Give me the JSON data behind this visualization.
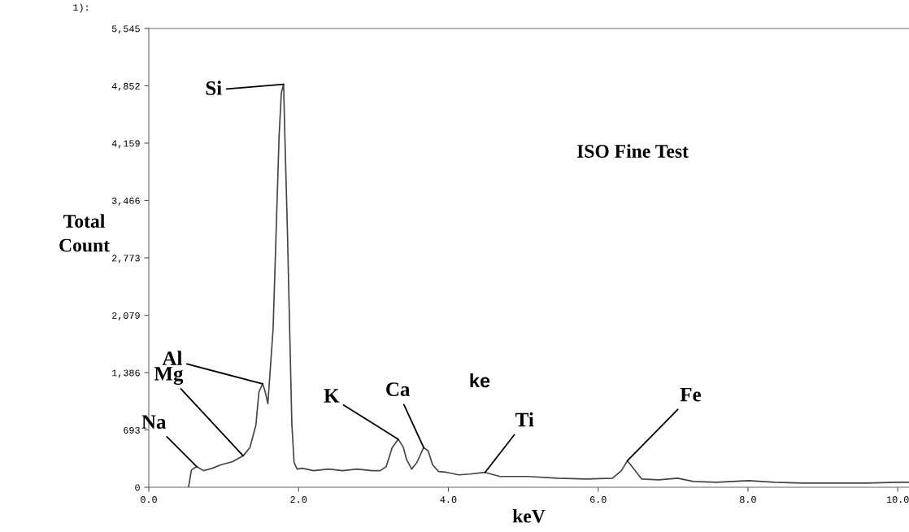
{
  "chart_data": {
    "type": "line",
    "xlabel": "keV",
    "ylabel": "Total Count",
    "xlim": [
      0,
      10.15
    ],
    "ylim": [
      0,
      5545
    ],
    "xticks": [
      {
        "value": 0,
        "label": "0.0"
      },
      {
        "value": 2,
        "label": "2.0"
      },
      {
        "value": 4,
        "label": "4.0"
      },
      {
        "value": 6,
        "label": "6.0"
      },
      {
        "value": 8,
        "label": "8.0"
      },
      {
        "value": 10,
        "label": "10.0"
      }
    ],
    "yticks": [
      0,
      {
        "value": 693,
        "label": "693"
      },
      {
        "value": 1386,
        "label": "1,386"
      },
      {
        "value": 2079,
        "label": "2,079"
      },
      {
        "value": 2773,
        "label": "2,773"
      },
      {
        "value": 3466,
        "label": "3,466"
      },
      {
        "value": 4159,
        "label": "4,159"
      },
      {
        "value": 4852,
        "label": "4,852"
      },
      {
        "value": 5545,
        "label": "5,545"
      }
    ],
    "grid": false,
    "legend": false,
    "marker": "none",
    "line_style": "solid",
    "series": [
      {
        "color": "#444444",
        "x": [
          0.53,
          0.57,
          0.64,
          0.73,
          0.85,
          0.96,
          1.12,
          1.26,
          1.35,
          1.43,
          1.47,
          1.52,
          1.55,
          1.59,
          1.66,
          1.7,
          1.74,
          1.77,
          1.8,
          1.815,
          1.85,
          1.88,
          1.91,
          1.94,
          1.98,
          2.05,
          2.2,
          2.4,
          2.59,
          2.78,
          2.98,
          3.09,
          3.17,
          3.25,
          3.33,
          3.36,
          3.4,
          3.44,
          3.51,
          3.58,
          3.67,
          3.73,
          3.79,
          3.87,
          3.98,
          4.14,
          4.29,
          4.49,
          4.69,
          5.07,
          5.46,
          5.85,
          6.19,
          6.31,
          6.39,
          6.46,
          6.58,
          6.81,
          7.06,
          7.27,
          7.58,
          8.01,
          8.36,
          8.74,
          9.13,
          9.59,
          9.98,
          10.15
        ],
        "values": [
          0,
          210,
          250,
          200,
          230,
          270,
          310,
          380,
          480,
          750,
          1150,
          1250,
          1170,
          1010,
          1920,
          3080,
          4250,
          4770,
          4870,
          4310,
          3130,
          1950,
          770,
          300,
          220,
          230,
          200,
          220,
          200,
          220,
          200,
          200,
          250,
          480,
          580,
          540,
          480,
          340,
          220,
          300,
          480,
          440,
          270,
          190,
          180,
          150,
          160,
          180,
          130,
          130,
          110,
          100,
          110,
          200,
          320,
          240,
          100,
          90,
          110,
          70,
          60,
          80,
          60,
          50,
          50,
          50,
          60,
          60
        ]
      }
    ],
    "annotations": [
      {
        "text": "Na",
        "x": 0.64,
        "y": 250
      },
      {
        "text": "Mg",
        "x": 1.26,
        "y": 380
      },
      {
        "text": "Al",
        "x": 1.52,
        "y": 1250
      },
      {
        "text": "Si",
        "x": 1.8,
        "y": 4870
      },
      {
        "text": "K",
        "x": 3.33,
        "y": 580
      },
      {
        "text": "Ca",
        "x": 3.67,
        "y": 480
      },
      {
        "text": "Ti",
        "x": 4.49,
        "y": 180
      },
      {
        "text": "Fe",
        "x": 6.39,
        "y": 320
      },
      "ISO Fine Test",
      "ke",
      "1):"
    ]
  }
}
